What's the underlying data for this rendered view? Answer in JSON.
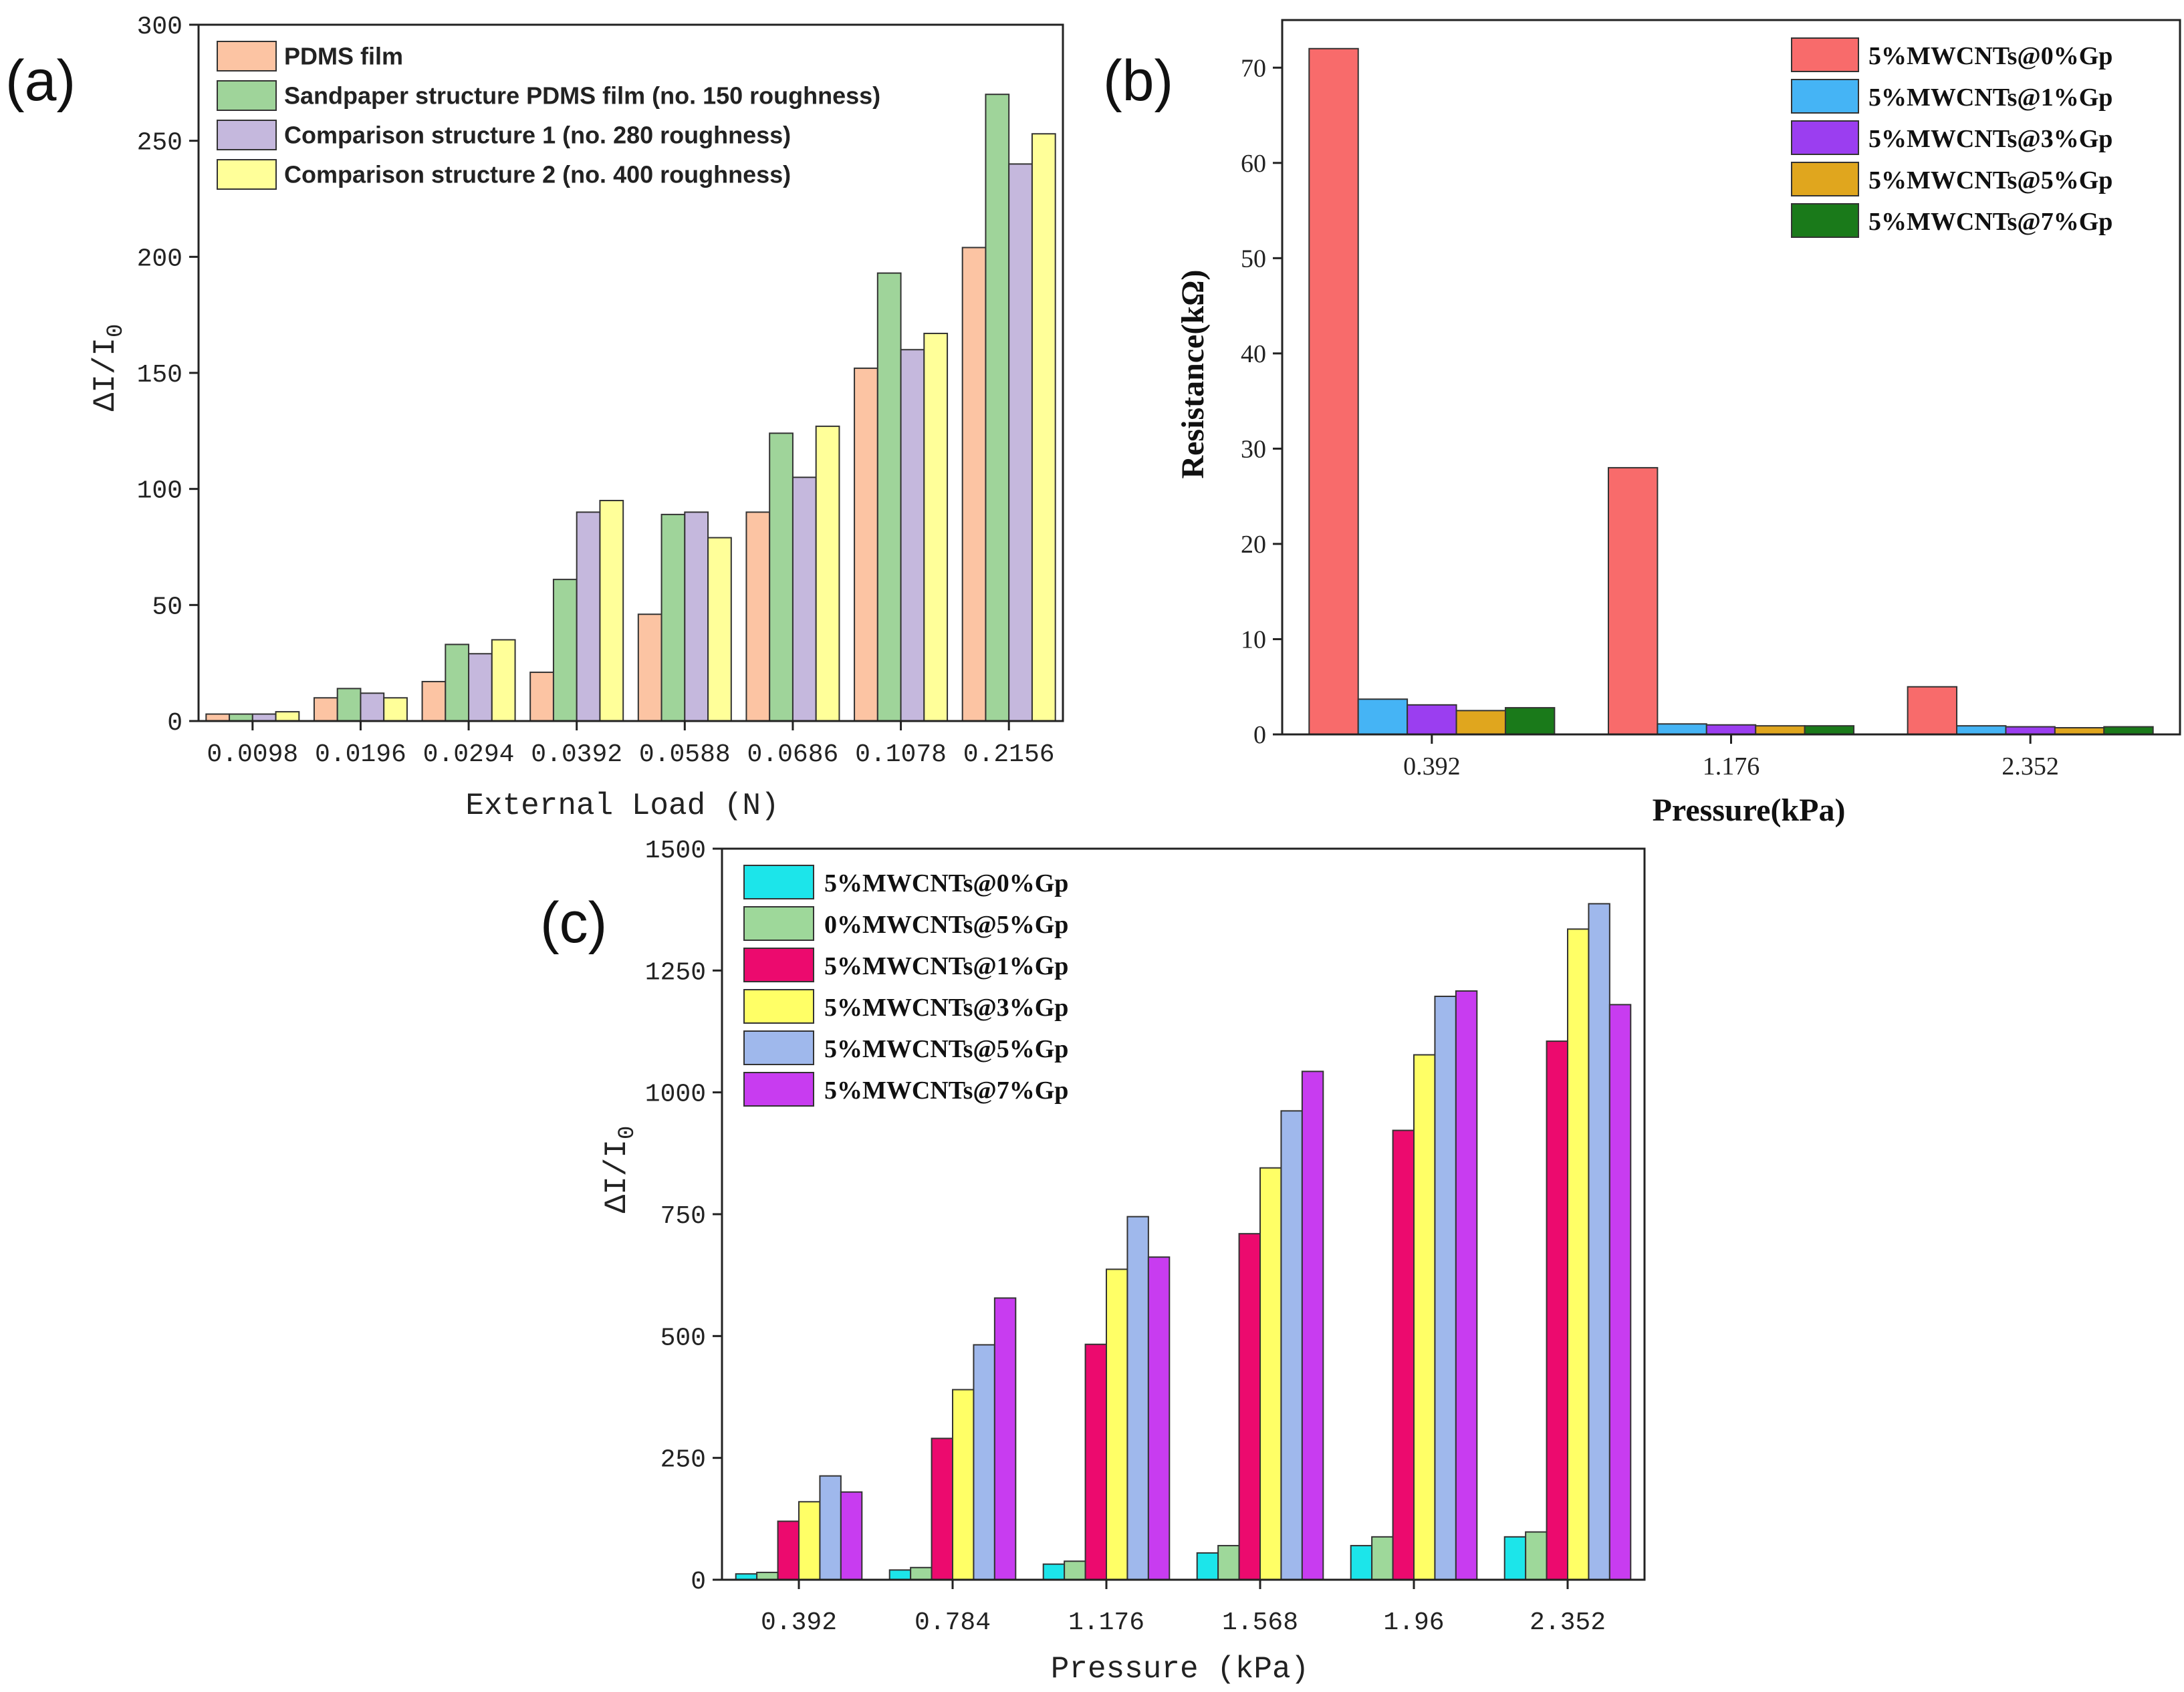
{
  "panels": {
    "a": "(a)",
    "b": "(b)",
    "c": "(c)"
  },
  "chart_data": [
    {
      "id": "a",
      "type": "bar",
      "title": "",
      "xlabel": "External Load (N)",
      "ylabel": "ΔI/I",
      "ylabel_sub": "0",
      "ylim": [
        0,
        300
      ],
      "yticks": [
        0,
        50,
        100,
        150,
        200,
        250,
        300
      ],
      "categories": [
        "0.0098",
        "0.0196",
        "0.0294",
        "0.0392",
        "0.0588",
        "0.0686",
        "0.1078",
        "0.2156"
      ],
      "legend_position": "top-left",
      "series": [
        {
          "name": "PDMS film",
          "color": "#fcc4a3",
          "values": [
            3,
            10,
            17,
            21,
            46,
            90,
            152,
            204
          ]
        },
        {
          "name": "Sandpaper structure PDMS film (no. 150 roughness)",
          "color": "#9fd49a",
          "values": [
            3,
            14,
            33,
            61,
            89,
            124,
            193,
            270
          ]
        },
        {
          "name": "Comparison structure 1 (no. 280 roughness)",
          "color": "#c5b8dd",
          "values": [
            3,
            12,
            29,
            90,
            90,
            105,
            160,
            240
          ]
        },
        {
          "name": "Comparison structure 2 (no. 400 roughness)",
          "color": "#ffff99",
          "values": [
            4,
            10,
            35,
            95,
            79,
            127,
            167,
            253
          ]
        }
      ]
    },
    {
      "id": "b",
      "type": "bar",
      "title": "",
      "xlabel": "Pressure(kPa)",
      "ylabel": "Resistance(kΩ)",
      "ylim": [
        0,
        75
      ],
      "yticks": [
        0,
        10,
        20,
        30,
        40,
        50,
        60,
        70
      ],
      "categories": [
        "0.392",
        "1.176",
        "2.352"
      ],
      "legend_position": "top-right",
      "series": [
        {
          "name": "5%MWCNTs@0%Gp",
          "color": "#f86b6b",
          "values": [
            72,
            28,
            5
          ]
        },
        {
          "name": "5%MWCNTs@1%Gp",
          "color": "#45b4f5",
          "values": [
            3.7,
            1.1,
            0.9
          ]
        },
        {
          "name": "5%MWCNTs@3%Gp",
          "color": "#9b3ef0",
          "values": [
            3.1,
            1.0,
            0.8
          ]
        },
        {
          "name": "5%MWCNTs@5%Gp",
          "color": "#e0a61e",
          "values": [
            2.5,
            0.9,
            0.7
          ]
        },
        {
          "name": "5%MWCNTs@7%Gp",
          "color": "#1a7a1a",
          "values": [
            2.8,
            0.9,
            0.8
          ]
        }
      ]
    },
    {
      "id": "c",
      "type": "bar",
      "title": "",
      "xlabel": "Pressure (kPa)",
      "ylabel": "ΔI/I",
      "ylabel_sub": "0",
      "ylim": [
        0,
        1500
      ],
      "yticks": [
        0,
        250,
        500,
        750,
        1000,
        1250,
        1500
      ],
      "categories": [
        "0.392",
        "0.784",
        "1.176",
        "1.568",
        "1.96",
        "2.352"
      ],
      "legend_position": "top-left",
      "series": [
        {
          "name": "5%MWCNTs@0%Gp",
          "color": "#1ce5ea",
          "values": [
            12,
            20,
            32,
            55,
            70,
            88
          ]
        },
        {
          "name": "0%MWCNTs@5%Gp",
          "color": "#9ed89a",
          "values": [
            15,
            25,
            38,
            70,
            88,
            98
          ]
        },
        {
          "name": "5%MWCNTs@1%Gp",
          "color": "#ec0a6e",
          "values": [
            120,
            290,
            483,
            710,
            922,
            1105
          ]
        },
        {
          "name": "5%MWCNTs@3%Gp",
          "color": "#ffff66",
          "values": [
            160,
            390,
            637,
            845,
            1077,
            1335
          ]
        },
        {
          "name": "5%MWCNTs@5%Gp",
          "color": "#9fb8ec",
          "values": [
            213,
            482,
            745,
            962,
            1197,
            1387
          ]
        },
        {
          "name": "5%MWCNTs@7%Gp",
          "color": "#c83cf0",
          "values": [
            180,
            578,
            662,
            1043,
            1208,
            1180
          ]
        }
      ]
    }
  ]
}
